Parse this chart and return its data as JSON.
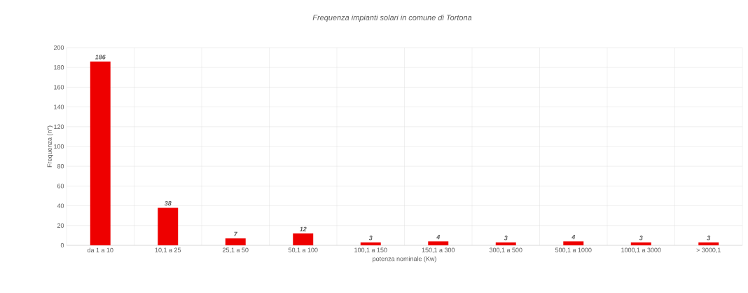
{
  "chart_data": {
    "type": "bar",
    "title": "Frequenza impianti solari in comune di Tortona",
    "xlabel": "potenza nominale (Kw)",
    "ylabel": "Frequenza (n°)",
    "categories": [
      "da 1 a 10",
      "10,1 a 25",
      "25,1 a 50",
      "50,1 a 100",
      "100,1 a 150",
      "150,1 a 300",
      "300,1 a 500",
      "500,1 a 1000",
      "1000,1 a 3000",
      "> 3000,1"
    ],
    "values": [
      186,
      38,
      7,
      12,
      3,
      4,
      3,
      4,
      3,
      3
    ],
    "color": "#ee0000",
    "ylim": [
      0,
      200
    ],
    "yticks": [
      0,
      20,
      40,
      60,
      80,
      100,
      120,
      140,
      160,
      180,
      200
    ],
    "grid": true,
    "data_labels": true
  }
}
